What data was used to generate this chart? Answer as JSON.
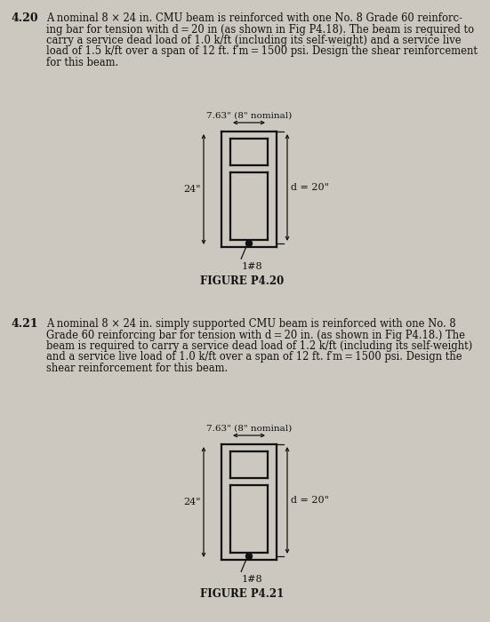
{
  "bg_color": "#ccc8c0",
  "text_color": "#111111",
  "fig_width": 5.51,
  "fig_height": 7.0,
  "dpi": 100,
  "problem_420": {
    "number": "4.20",
    "text_lines": [
      "A nominal 8 × 24 in. CMU beam is reinforced with one No. 8 Grade 60 reinforc-",
      "ing bar for tension with d = 20 in (as shown in Fig P4.18). The beam is required to",
      "carry a service dead load of 1.0 k/ft (including its self-weight) and a service live",
      "load of 1.5 k/ft over a span of 12 ft. f′m = 1500 psi. Design the shear reinforcement",
      "for this beam."
    ],
    "figure_label": "FIGURE P4.20",
    "dim_top": "7.63\" (8\" nominal)",
    "dim_left": "24\"",
    "dim_right": "d = 20\"",
    "bar_label": "1#8"
  },
  "problem_421": {
    "number": "4.21",
    "text_lines": [
      "A nominal 8 × 24 in. simply supported CMU beam is reinforced with one No. 8",
      "Grade 60 reinforcing bar for tension with d = 20 in. (as shown in Fig P4.18.) The",
      "beam is required to carry a service dead load of 1.2 k/ft (including its self-weight)",
      "and a service live load of 1.0 k/ft over a span of 12 ft. f′m = 1500 psi. Design the",
      "shear reinforcement for this beam."
    ],
    "figure_label": "FIGURE P4.21",
    "dim_top": "7.63\" (8\" nominal)",
    "dim_left": "24\"",
    "dim_right": "d = 20\"",
    "bar_label": "1#8"
  }
}
